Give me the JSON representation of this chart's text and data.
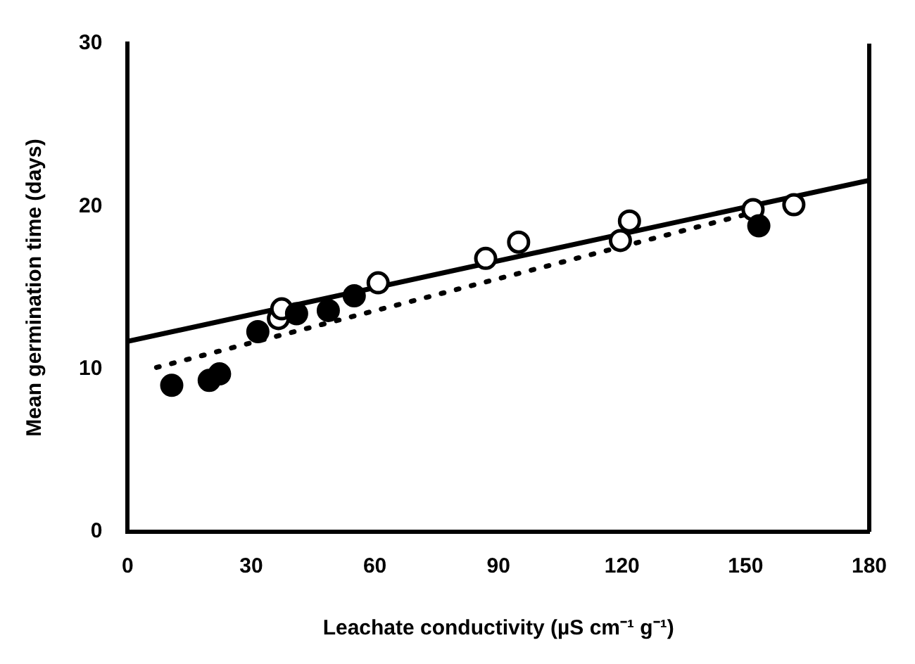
{
  "chart_data": {
    "type": "scatter",
    "xlabel": "Leachate conductivity (µS cm⁻¹ g⁻¹)",
    "ylabel": "Mean germination time (days)",
    "xlim": [
      0,
      180
    ],
    "xticks": [
      0,
      30,
      60,
      90,
      120,
      150,
      180
    ],
    "ylim": [
      0,
      30
    ],
    "yticks": [
      0,
      10,
      20,
      30
    ],
    "grid": false,
    "legend": false,
    "marker": "circle",
    "series": [
      {
        "color": "#000000",
        "x": [
          10.7,
          19.8,
          22.3,
          31.6,
          41.0,
          48.7,
          55.0,
          153.2
        ],
        "values": [
          9.0,
          9.3,
          9.7,
          12.3,
          13.4,
          13.6,
          14.5,
          18.8
        ]
      },
      {
        "color": "#ffffff",
        "x": [
          36.6,
          37.4,
          60.8,
          86.9,
          94.9,
          119.6,
          121.8,
          151.8,
          161.7
        ],
        "values": [
          13.1,
          13.7,
          15.3,
          16.8,
          17.8,
          17.9,
          19.1,
          19.8,
          20.1
        ]
      },
      {
        "type": "line",
        "color": "#000000",
        "line_style": "solid",
        "marker": "none",
        "x": [
          0,
          180
        ],
        "values": [
          11.7,
          21.6
        ]
      },
      {
        "type": "line",
        "color": "#000000",
        "line_style": "dotted",
        "marker": "none",
        "x": [
          7,
          150
        ],
        "values": [
          10.1,
          19.5
        ]
      }
    ]
  }
}
